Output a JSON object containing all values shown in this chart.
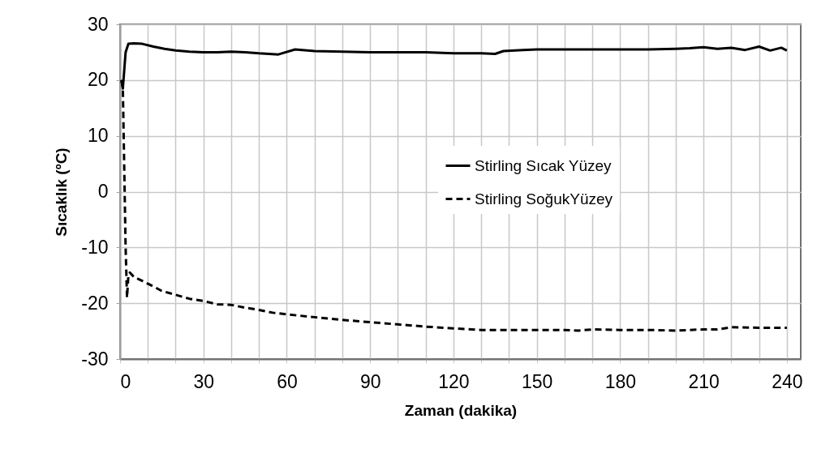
{
  "chart_data": {
    "type": "line",
    "xlabel": "Zaman (dakika)",
    "ylabel": "Sıcaklık (ºC)",
    "xlim": [
      0,
      245
    ],
    "ylim": [
      -30,
      30
    ],
    "xticks": [
      0,
      {
        "value": 10,
        "label": null
      },
      {
        "value": 20,
        "label": null
      },
      30,
      {
        "value": 40,
        "label": null
      },
      {
        "value": 50,
        "label": null
      },
      60,
      {
        "value": 70,
        "label": null
      },
      {
        "value": 80,
        "label": null
      },
      90,
      {
        "value": 100,
        "label": null
      },
      {
        "value": 110,
        "label": null
      },
      120,
      {
        "value": 130,
        "label": null
      },
      {
        "value": 140,
        "label": null
      },
      150,
      {
        "value": 160,
        "label": null
      },
      {
        "value": 170,
        "label": null
      },
      180,
      {
        "value": 190,
        "label": null
      },
      {
        "value": 200,
        "label": null
      },
      210,
      {
        "value": 220,
        "label": null
      },
      {
        "value": 230,
        "label": null
      },
      240
    ],
    "yticks": [
      -30,
      -20,
      -10,
      0,
      10,
      20,
      30
    ],
    "grid": true,
    "legend": "right",
    "marker": "none",
    "series": [
      {
        "name": "Stirling Sıcak Yüzey",
        "color": "#000000",
        "line_style": "solid",
        "x": [
          0.5,
          1,
          2,
          3,
          5,
          8,
          12,
          16,
          20,
          25,
          30,
          35,
          40,
          45,
          50,
          57,
          63,
          70,
          80,
          90,
          100,
          110,
          120,
          130,
          135,
          138,
          145,
          150,
          160,
          170,
          180,
          190,
          200,
          205,
          210,
          215,
          220,
          225,
          230,
          234,
          238,
          240
        ],
        "values": [
          20,
          18.5,
          25,
          26.5,
          26.6,
          26.5,
          26,
          25.6,
          25.3,
          25.1,
          25,
          25,
          25.1,
          25,
          24.8,
          24.6,
          25.5,
          25.2,
          25.1,
          25,
          25,
          25,
          24.8,
          24.8,
          24.7,
          25.2,
          25.4,
          25.5,
          25.5,
          25.5,
          25.5,
          25.5,
          25.6,
          25.7,
          25.9,
          25.6,
          25.8,
          25.4,
          26,
          25.3,
          25.8,
          25.3
        ]
      },
      {
        "name": "Stirling SoğukYüzey",
        "color": "#000000",
        "line_style": "dashed",
        "x": [
          0.5,
          1,
          2,
          2.5,
          3,
          3.5,
          5,
          8,
          12,
          15,
          20,
          25,
          30,
          35,
          40,
          45,
          50,
          55,
          60,
          70,
          80,
          90,
          100,
          110,
          120,
          130,
          140,
          150,
          160,
          165,
          170,
          180,
          190,
          200,
          210,
          215,
          220,
          230,
          240
        ],
        "values": [
          20,
          18.5,
          -10,
          -19,
          -15,
          -14.5,
          -15.3,
          -16,
          -17,
          -17.8,
          -18.5,
          -19.2,
          -19.6,
          -20.2,
          -20.3,
          -20.8,
          -21.2,
          -21.7,
          -22,
          -22.5,
          -23,
          -23.4,
          -23.8,
          -24.2,
          -24.5,
          -24.8,
          -24.8,
          -24.8,
          -24.8,
          -24.9,
          -24.7,
          -24.8,
          -24.8,
          -24.9,
          -24.7,
          -24.7,
          -24.3,
          -24.4,
          -24.4
        ]
      }
    ]
  }
}
